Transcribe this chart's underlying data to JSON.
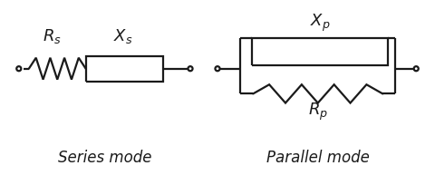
{
  "bg_color": "#ffffff",
  "line_color": "#1a1a1a",
  "line_width": 1.6,
  "series_label": "Series mode",
  "parallel_label": "Parallel mode",
  "Rs_label": "$R_s$",
  "Xs_label": "$X_s$",
  "Xp_label": "$X_p$",
  "Rp_label": "$R_p$",
  "label_fontsize": 13,
  "mode_fontsize": 12,
  "fig_width": 4.8,
  "fig_height": 2.04,
  "dpi": 100
}
